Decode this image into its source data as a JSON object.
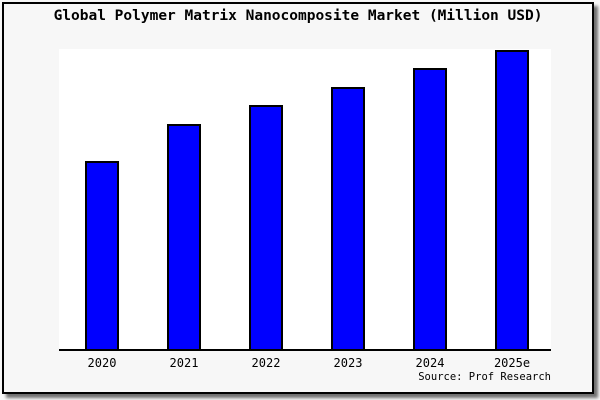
{
  "chart_data": {
    "type": "bar",
    "title": "Global Polymer Matrix Nanocomposite Market (Million USD)",
    "categories": [
      "2020",
      "2021",
      "2022",
      "2023",
      "2024",
      "2025e"
    ],
    "series": [
      {
        "name": "Global Polymer Matrix Nanocomposite Market",
        "values_pct_of_max": [
          62.9,
          75.3,
          81.6,
          87.6,
          94.0,
          100.0
        ]
      }
    ],
    "y_axis": {
      "tick_labels_visible": false,
      "gridlines": false
    },
    "legend_position": "none",
    "value_labels_visible": false,
    "bar_color": "#0000ff",
    "bar_border_color": "#000000",
    "plot_bg": "#ffffff",
    "panel_bg": "#f7f7f7",
    "source_note": "Source: Prof Research"
  }
}
